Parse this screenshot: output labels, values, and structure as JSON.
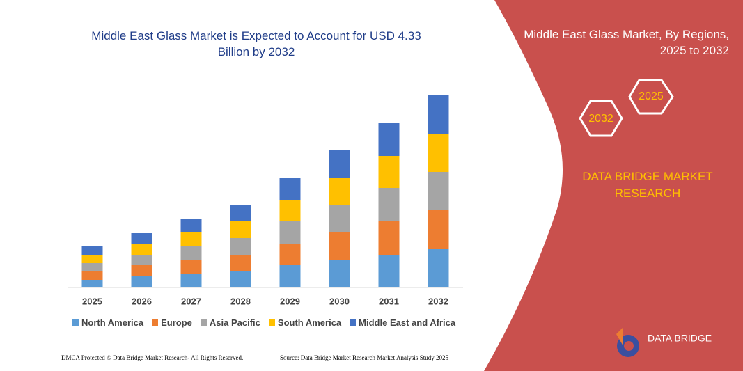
{
  "chart_data": {
    "type": "stacked-bar",
    "title_lines": [
      "Middle East Glass Market is Expected to Account for USD 4.33",
      "Billion by 2032"
    ],
    "categories": [
      "2025",
      "2026",
      "2027",
      "2028",
      "2029",
      "2030",
      "2031",
      "2032"
    ],
    "series": [
      {
        "name": "North America",
        "color": "#5b9bd5",
        "values": [
          11,
          16,
          20,
          24,
          32,
          39,
          47,
          55
        ]
      },
      {
        "name": "Europe",
        "color": "#ed7d31",
        "values": [
          12,
          16,
          19,
          23,
          31,
          40,
          48,
          56
        ]
      },
      {
        "name": "Asia Pacific",
        "color": "#a5a5a5",
        "values": [
          12,
          15,
          20,
          24,
          32,
          39,
          48,
          55
        ]
      },
      {
        "name": "South America",
        "color": "#ffc000",
        "values": [
          12,
          16,
          20,
          24,
          31,
          39,
          46,
          55
        ]
      },
      {
        "name": "Middle East and Africa",
        "color": "#4472c4",
        "values": [
          12,
          15,
          20,
          24,
          31,
          40,
          48,
          55
        ]
      }
    ],
    "legend": "bottom"
  },
  "panel": {
    "title_lines": [
      "Middle East Glass Market, By Regions,",
      "2025 to 2032"
    ],
    "hexagons": [
      "2032",
      "2025"
    ],
    "brand_lines": [
      "DATA BRIDGE MARKET",
      "RESEARCH"
    ],
    "logo_text": "DATA BRIDGE"
  },
  "footer": {
    "left": "DMCA Protected © Data Bridge Market Research-  All Rights Reserved.",
    "right": "Source: Data Bridge Market Research  Market Analysis Study 2025"
  }
}
